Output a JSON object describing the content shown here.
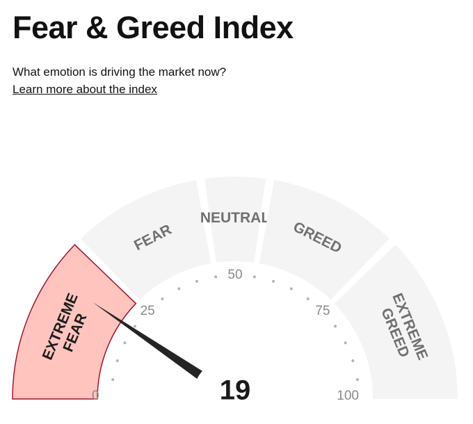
{
  "header": {
    "title": "Fear & Greed Index",
    "subtitle": "What emotion is driving the market now?",
    "learn_more": "Learn more about the index"
  },
  "gauge": {
    "value": 19,
    "value_label": "19",
    "scale_min": 0,
    "scale_max": 100,
    "segments": [
      {
        "lines": [
          "EXTREME",
          "FEAR"
        ],
        "from": 0,
        "to": 25,
        "active": true
      },
      {
        "lines": [
          "FEAR"
        ],
        "from": 25,
        "to": 45,
        "active": false
      },
      {
        "lines": [
          "NEUTRAL"
        ],
        "from": 45,
        "to": 55,
        "active": false
      },
      {
        "lines": [
          "GREED"
        ],
        "from": 55,
        "to": 75,
        "active": false
      },
      {
        "lines": [
          "EXTREME",
          "GREED"
        ],
        "from": 75,
        "to": 100,
        "active": false
      }
    ],
    "tick_labels": [
      {
        "value": 0,
        "text": "0"
      },
      {
        "value": 25,
        "text": "25"
      },
      {
        "value": 50,
        "text": "50"
      },
      {
        "value": 75,
        "text": "75"
      },
      {
        "value": 100,
        "text": "100"
      }
    ],
    "colors": {
      "segment": "#f4f4f4",
      "active_fill": "#ffc4be",
      "active_stroke": "#a3122e",
      "needle": "#242424",
      "dots": "#b4b4b4"
    }
  }
}
